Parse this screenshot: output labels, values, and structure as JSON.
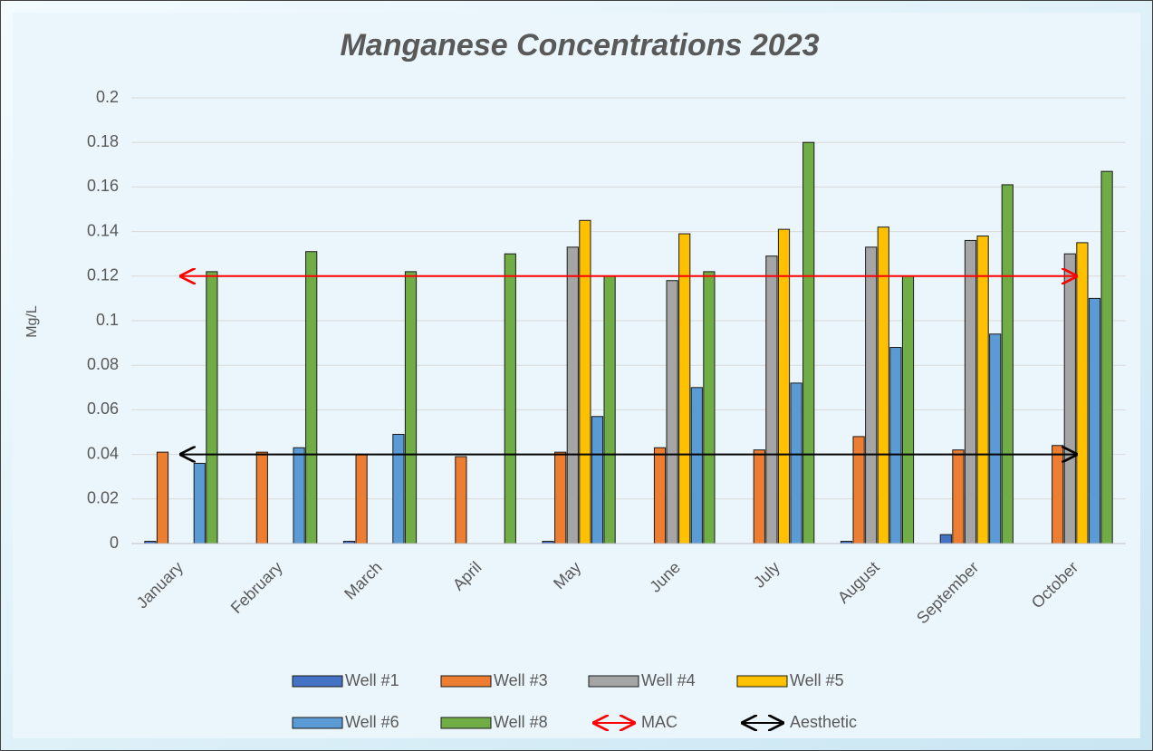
{
  "chart_data": {
    "type": "bar",
    "title": "Manganese Concentrations 2023",
    "y_label": "Mg/L",
    "categories": [
      "January",
      "February",
      "March",
      "April",
      "May",
      "June",
      "July",
      "August",
      "September",
      "October"
    ],
    "series": [
      {
        "name": "Well #1",
        "color": "#4472c4",
        "values": [
          0.001,
          null,
          0.001,
          null,
          0.001,
          null,
          null,
          0.001,
          0.004,
          null
        ]
      },
      {
        "name": "Well #3",
        "color": "#ed7d31",
        "values": [
          0.041,
          0.041,
          0.04,
          0.039,
          0.041,
          0.043,
          0.042,
          0.048,
          0.042,
          0.044
        ]
      },
      {
        "name": "Well #4",
        "color": "#a5a5a5",
        "values": [
          null,
          null,
          null,
          null,
          0.133,
          0.118,
          0.129,
          0.133,
          0.136,
          0.13
        ]
      },
      {
        "name": "Well #5",
        "color": "#ffc000",
        "values": [
          null,
          null,
          null,
          null,
          0.145,
          0.139,
          0.141,
          0.142,
          0.138,
          0.135
        ]
      },
      {
        "name": "Well #6",
        "color": "#5b9bd5",
        "values": [
          0.036,
          0.043,
          0.049,
          null,
          0.057,
          0.07,
          0.072,
          0.088,
          0.094,
          0.11
        ]
      },
      {
        "name": "Well #8",
        "color": "#70ad47",
        "values": [
          0.122,
          0.131,
          0.122,
          0.13,
          0.12,
          0.122,
          0.18,
          0.12,
          0.161,
          0.167
        ]
      }
    ],
    "lines": [
      {
        "name": "MAC",
        "color": "#ff0000",
        "value": 0.12
      },
      {
        "name": "Aesthetic",
        "color": "#000000",
        "value": 0.04
      }
    ],
    "ylim": [
      0,
      0.2
    ],
    "yticks": [
      0,
      0.02,
      0.04,
      0.06,
      0.08,
      0.1,
      0.12,
      0.14,
      0.16,
      0.18,
      0.2
    ],
    "grid": true
  }
}
